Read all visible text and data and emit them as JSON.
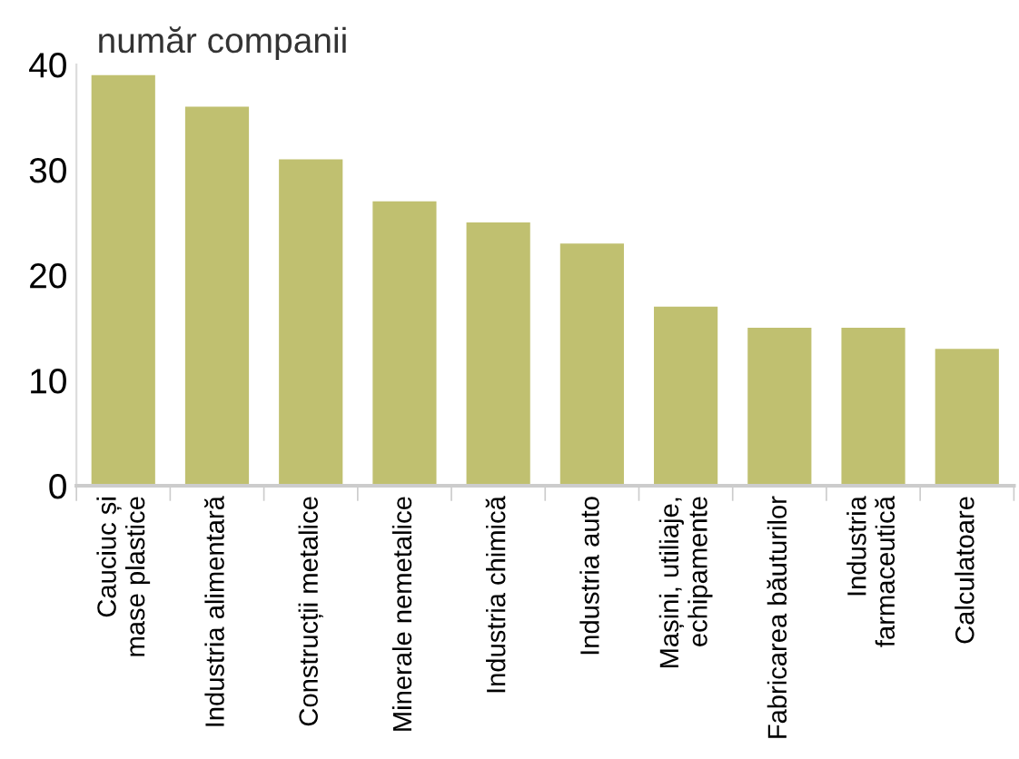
{
  "chart_data": {
    "type": "bar",
    "ylabel": "număr companii",
    "categories": [
      "Cauciuc și\nmase plastice",
      "Industria alimentară",
      "Construcții metalice",
      "Minerale nemetalice",
      "Industria chimică",
      "Industria auto",
      "Mașini, utiliaje,\nechipamente",
      "Fabricarea băuturilor",
      "Industria\nfarmaceutică",
      "Calculatoare"
    ],
    "values": [
      39,
      36,
      31,
      27,
      25,
      23,
      17,
      15,
      15,
      13
    ],
    "color": "#c0c070",
    "ylim": [
      0,
      40
    ],
    "yticks": [
      0,
      10,
      20,
      30,
      40
    ],
    "grid": false
  }
}
